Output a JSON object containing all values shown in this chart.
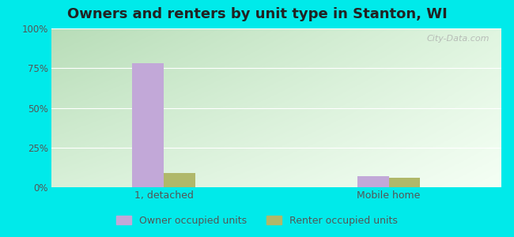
{
  "title": "Owners and renters by unit type in Stanton, WI",
  "categories": [
    "1, detached",
    "Mobile home"
  ],
  "owner_values": [
    78,
    7
  ],
  "renter_values": [
    9,
    6
  ],
  "owner_color": "#c2a8d8",
  "renter_color": "#b0b86a",
  "yticks": [
    0,
    25,
    50,
    75,
    100
  ],
  "ytick_labels": [
    "0%",
    "25%",
    "50%",
    "75%",
    "100%"
  ],
  "ylim": [
    0,
    100
  ],
  "bg_color_topleft": "#b8ddb8",
  "bg_color_topright": "#d8eed8",
  "bg_color_bottom": "#eef8ee",
  "outer_background": "#00eaea",
  "title_fontsize": 13,
  "legend_labels": [
    "Owner occupied units",
    "Renter occupied units"
  ],
  "watermark": "City-Data.com",
  "bar_width": 0.28,
  "x_positions": [
    1.0,
    3.0
  ],
  "xlim": [
    0.0,
    4.0
  ]
}
